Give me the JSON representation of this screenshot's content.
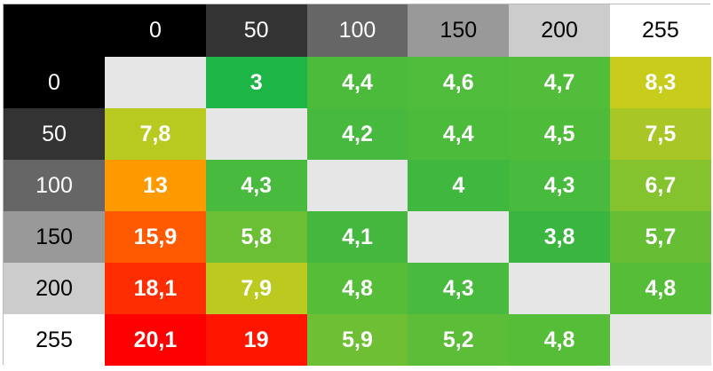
{
  "table": {
    "columns": [
      "0",
      "50",
      "100",
      "150",
      "200",
      "255"
    ],
    "header_colors": [
      "#000000",
      "#333333",
      "#666666",
      "#999999",
      "#cccccc",
      "#ffffff"
    ],
    "corner_color": "#000000",
    "empty_color": "#e6e6e6",
    "rows": [
      {
        "label": "0",
        "cells": [
          null,
          "3",
          "4,4",
          "4,6",
          "4,7",
          "8,3"
        ],
        "colors": [
          null,
          "#1db546",
          "#4cbb3c",
          "#50bc3b",
          "#52bd3a",
          "#c8cc1a"
        ]
      },
      {
        "label": "50",
        "cells": [
          "7,8",
          null,
          "4,2",
          "4,4",
          "4,5",
          "7,5"
        ],
        "colors": [
          "#b8c920",
          null,
          "#46b93e",
          "#4cbb3c",
          "#4fbb3b",
          "#a8c625"
        ]
      },
      {
        "label": "100",
        "cells": [
          "13",
          "4,3",
          null,
          "4",
          "4,3",
          "6,7"
        ],
        "colors": [
          "#ff9900",
          "#48ba3d",
          null,
          "#40b83f",
          "#48ba3d",
          "#84c22e"
        ]
      },
      {
        "label": "150",
        "cells": [
          "15,9",
          "5,8",
          "4,1",
          null,
          "3,8",
          "5,7"
        ],
        "colors": [
          "#ff5a00",
          "#6abf35",
          "#44b83e",
          null,
          "#3ab640",
          "#66be35"
        ]
      },
      {
        "label": "200",
        "cells": [
          "18,1",
          "7,9",
          "4,8",
          "4,3",
          null,
          "4,8"
        ],
        "colors": [
          "#ff2d00",
          "#bcc91f",
          "#56bd39",
          "#48ba3d",
          null,
          "#56bd39"
        ]
      },
      {
        "label": "255",
        "cells": [
          "20,1",
          "19",
          "5,9",
          "5,2",
          "4,8",
          null
        ],
        "colors": [
          "#ff0000",
          "#ff1500",
          "#6ebf34",
          "#5cbd38",
          "#56bd39",
          null
        ]
      }
    ]
  }
}
